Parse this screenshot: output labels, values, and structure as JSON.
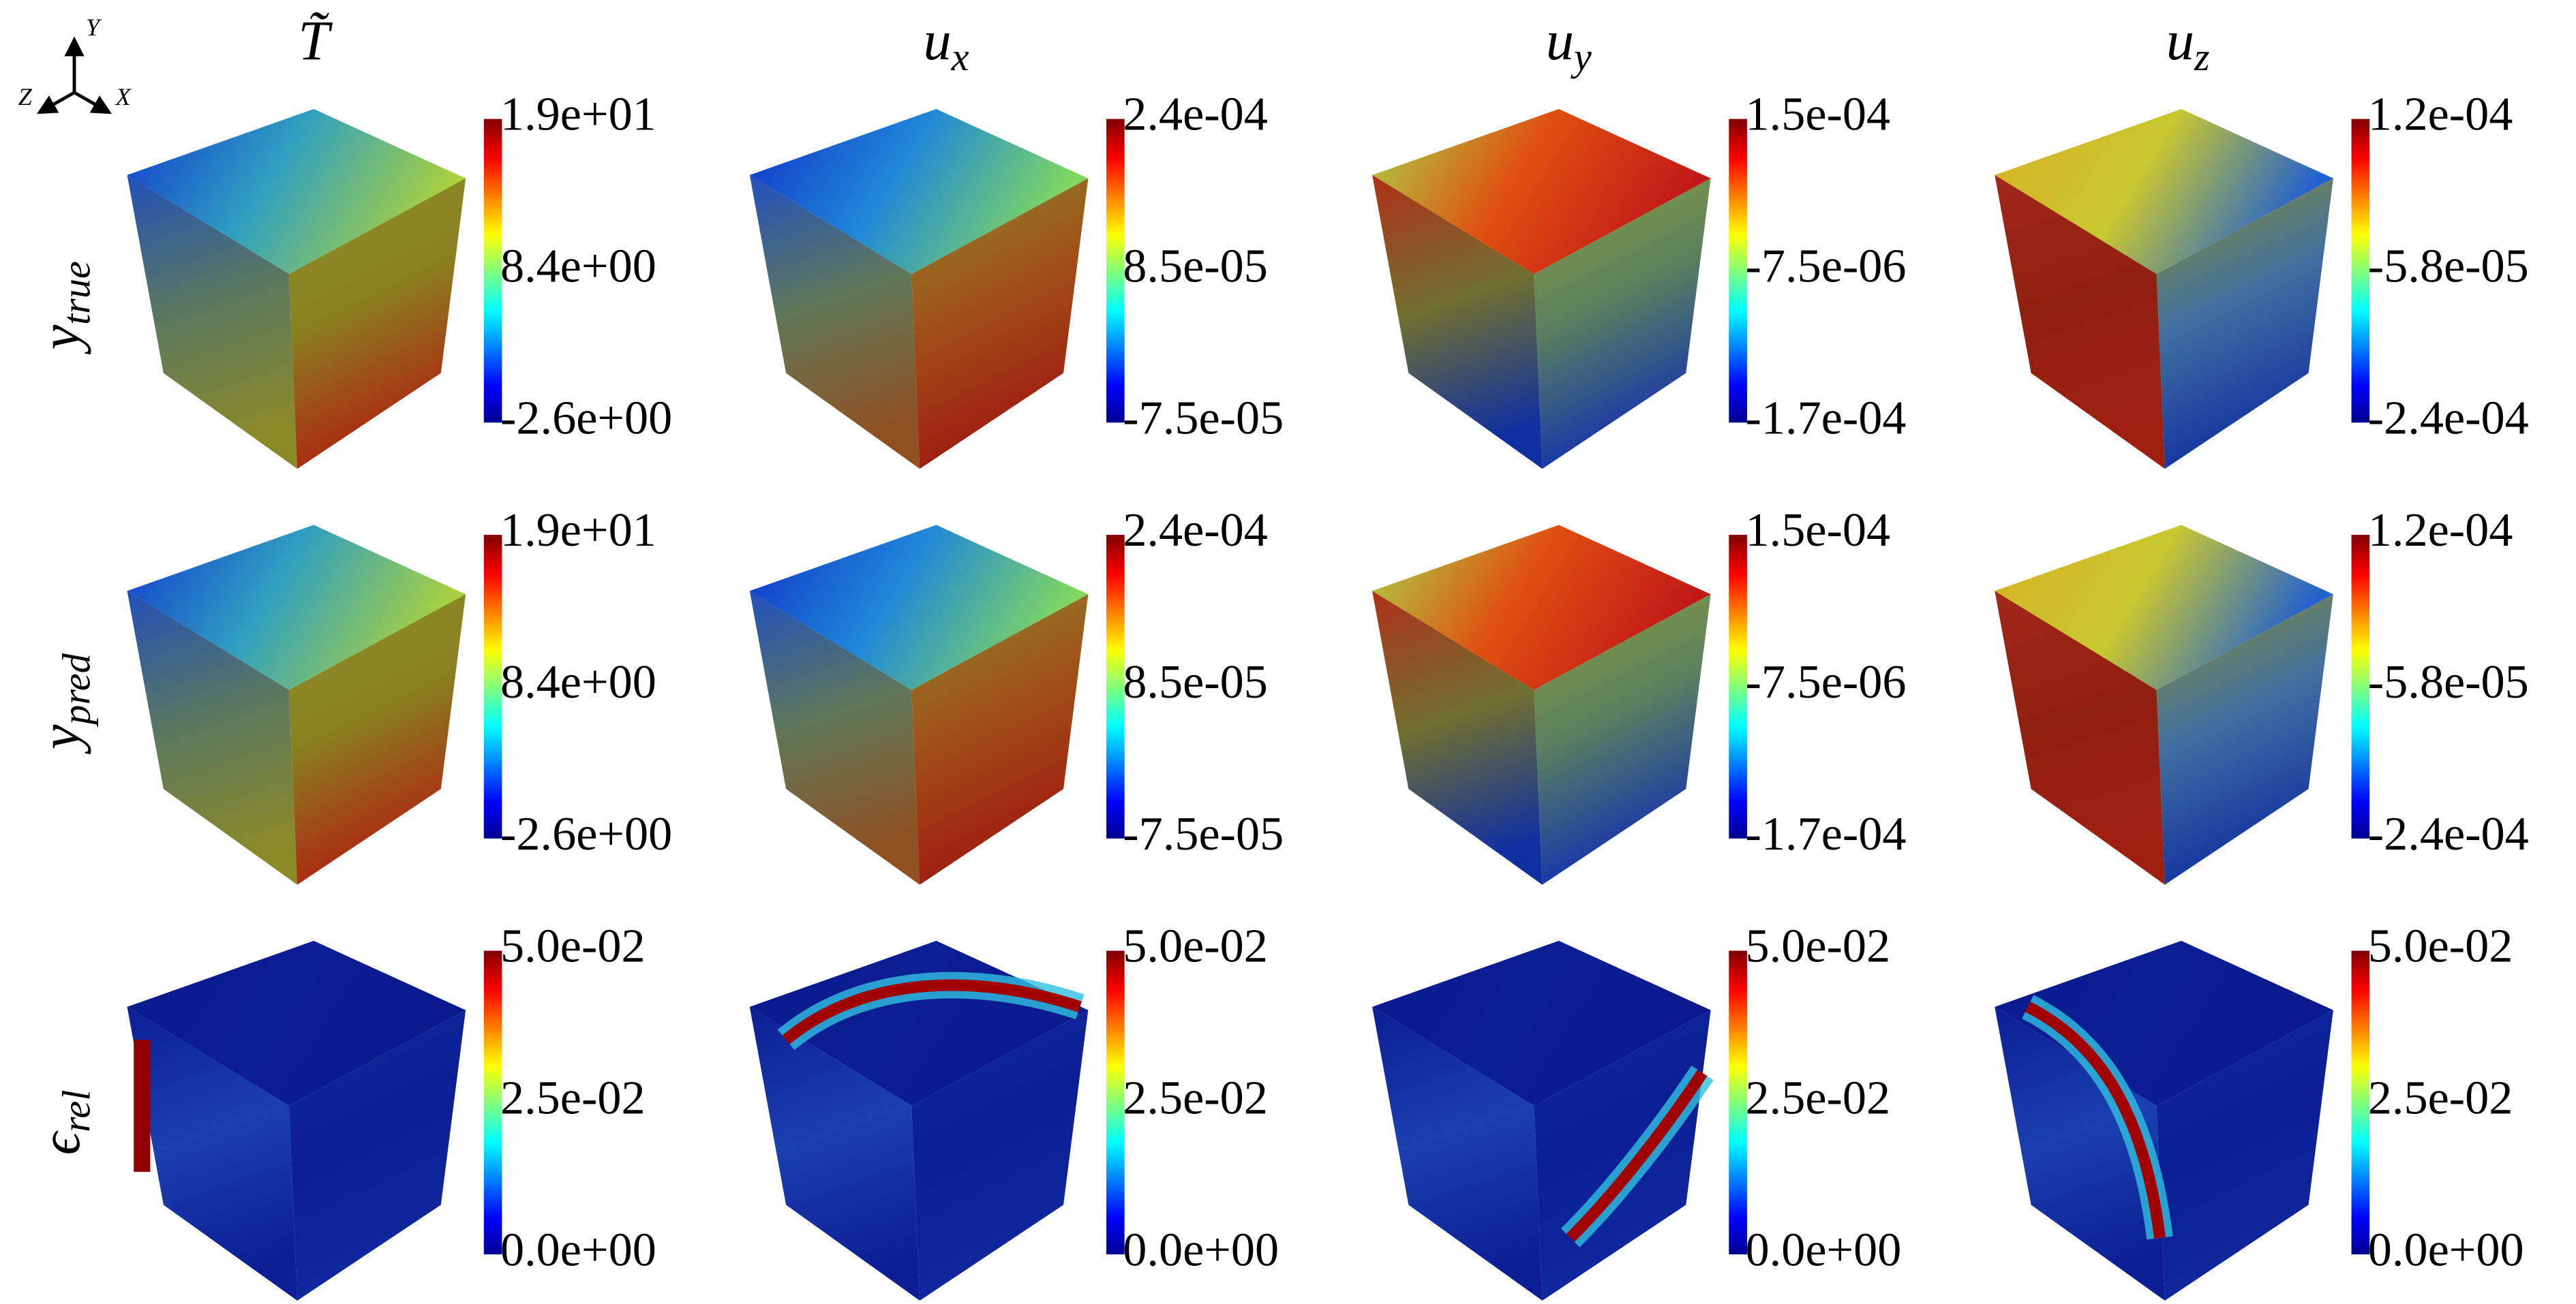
{
  "axes_triad": {
    "y": "Y",
    "z": "Z",
    "x": "X"
  },
  "columns": [
    {
      "symbol": "T̃"
    },
    {
      "symbol": "u",
      "sub": "x"
    },
    {
      "symbol": "u",
      "sub": "y"
    },
    {
      "symbol": "u",
      "sub": "z"
    }
  ],
  "rows": [
    {
      "symbol": "y",
      "sub": "true"
    },
    {
      "symbol": "y",
      "sub": "pred"
    },
    {
      "symbol": "ϵ",
      "sub": "rel"
    }
  ],
  "panels": [
    [
      {
        "colorbar": [
          "1.9e+01",
          "8.4e+00",
          "-2.6e+00"
        ]
      },
      {
        "colorbar": [
          "2.4e-04",
          "8.5e-05",
          "-7.5e-05"
        ]
      },
      {
        "colorbar": [
          "1.5e-04",
          "-7.5e-06",
          "-1.7e-04"
        ]
      },
      {
        "colorbar": [
          "1.2e-04",
          "-5.8e-05",
          "-2.4e-04"
        ]
      }
    ],
    [
      {
        "colorbar": [
          "1.9e+01",
          "8.4e+00",
          "-2.6e+00"
        ]
      },
      {
        "colorbar": [
          "2.4e-04",
          "8.5e-05",
          "-7.5e-05"
        ]
      },
      {
        "colorbar": [
          "1.5e-04",
          "-7.5e-06",
          "-1.7e-04"
        ]
      },
      {
        "colorbar": [
          "1.2e-04",
          "-5.8e-05",
          "-2.4e-04"
        ]
      }
    ],
    [
      {
        "colorbar": [
          "5.0e-02",
          "2.5e-02",
          "0.0e+00"
        ]
      },
      {
        "colorbar": [
          "5.0e-02",
          "2.5e-02",
          "0.0e+00"
        ]
      },
      {
        "colorbar": [
          "5.0e-02",
          "2.5e-02",
          "0.0e+00"
        ]
      },
      {
        "colorbar": [
          "5.0e-02",
          "2.5e-02",
          "0.0e+00"
        ]
      }
    ]
  ]
}
